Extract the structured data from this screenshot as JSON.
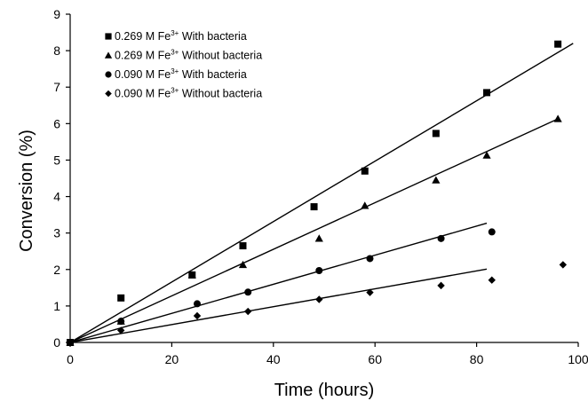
{
  "chart_data": {
    "type": "scatter",
    "title": "",
    "xlabel": "Time (hours)",
    "ylabel": "Conversion (%)",
    "xlim": [
      0,
      100
    ],
    "ylim": [
      0,
      9
    ],
    "xticks": [
      "0",
      "20",
      "40",
      "60",
      "80",
      "100"
    ],
    "yticks": [
      "0",
      "1",
      "2",
      "3",
      "4",
      "5",
      "6",
      "7",
      "8",
      "9"
    ],
    "grid": false,
    "legend_position": "top-left",
    "series": [
      {
        "name_main": "0.269 M Fe",
        "name_sup": "3+",
        "name_rest": " With bacteria",
        "marker": "square",
        "x": [
          0,
          10,
          24,
          34,
          48,
          58,
          72,
          82,
          96
        ],
        "y": [
          0,
          1.22,
          1.85,
          2.65,
          3.72,
          4.7,
          5.73,
          6.85,
          8.18
        ],
        "trend": {
          "x": [
            0,
            99
          ],
          "y": [
            0,
            8.2
          ]
        }
      },
      {
        "name_main": "0.269 M Fe",
        "name_sup": "3+",
        "name_rest": " Without bacteria",
        "marker": "triangle",
        "x": [
          0,
          10,
          24,
          34,
          49,
          58,
          72,
          82,
          96
        ],
        "y": [
          0,
          0.58,
          1.85,
          2.13,
          2.85,
          3.75,
          4.45,
          5.13,
          6.13
        ],
        "trend": {
          "x": [
            0,
            96
          ],
          "y": [
            0,
            6.13
          ]
        }
      },
      {
        "name_main": "0.090 M Fe",
        "name_sup": "3+",
        "name_rest": " With bacteria",
        "marker": "circle",
        "x": [
          0,
          10,
          25,
          35,
          49,
          59,
          73,
          83
        ],
        "y": [
          0,
          0.58,
          1.06,
          1.38,
          1.97,
          2.3,
          2.85,
          3.03
        ],
        "trend": {
          "x": [
            0,
            82
          ],
          "y": [
            0,
            3.27
          ]
        }
      },
      {
        "name_main": "0.090 M Fe",
        "name_sup": "3+",
        "name_rest": " Without bacteria",
        "marker": "diamond",
        "x": [
          0,
          10,
          25,
          35,
          49,
          59,
          73,
          83,
          97
        ],
        "y": [
          0,
          0.33,
          0.73,
          0.85,
          1.18,
          1.37,
          1.56,
          1.71,
          2.13
        ],
        "trend": {
          "x": [
            0,
            82
          ],
          "y": [
            0,
            2.01
          ]
        }
      }
    ]
  }
}
